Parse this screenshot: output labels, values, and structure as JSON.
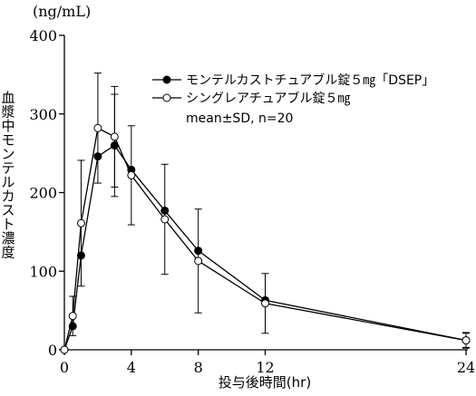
{
  "chart_data": {
    "type": "line",
    "y_unit": "(ng/mL)",
    "xlabel": "投与後時間(hr)",
    "ylabel": "血漿中モンテルカスト濃度",
    "ylim": [
      0,
      400
    ],
    "xlim": [
      0,
      24
    ],
    "x_ticks": [
      0,
      4,
      8,
      12,
      24
    ],
    "y_ticks": [
      0,
      100,
      200,
      300,
      400
    ],
    "legend_note": "mean±SD, n=20",
    "series": [
      {
        "name": "モンテルカストチュアブル錠５㎎「DSEP」",
        "marker": "filled",
        "x": [
          0,
          0.5,
          1,
          2,
          3,
          4,
          6,
          8,
          12,
          24
        ],
        "y": [
          0,
          30,
          120,
          246,
          260,
          229,
          177,
          126,
          63,
          12
        ],
        "sd": [
          0,
          0,
          0,
          0,
          65,
          0,
          0,
          0,
          0,
          9
        ]
      },
      {
        "name": "シングレアチュアブル錠５㎎",
        "marker": "open",
        "x": [
          0,
          0.5,
          1,
          2,
          3,
          4,
          6,
          8,
          12,
          24
        ],
        "y": [
          0,
          43,
          161,
          282,
          271,
          222,
          166,
          113,
          59,
          12
        ],
        "sd": [
          0,
          25,
          80,
          70,
          64,
          63,
          70,
          66,
          38,
          10
        ]
      }
    ]
  }
}
